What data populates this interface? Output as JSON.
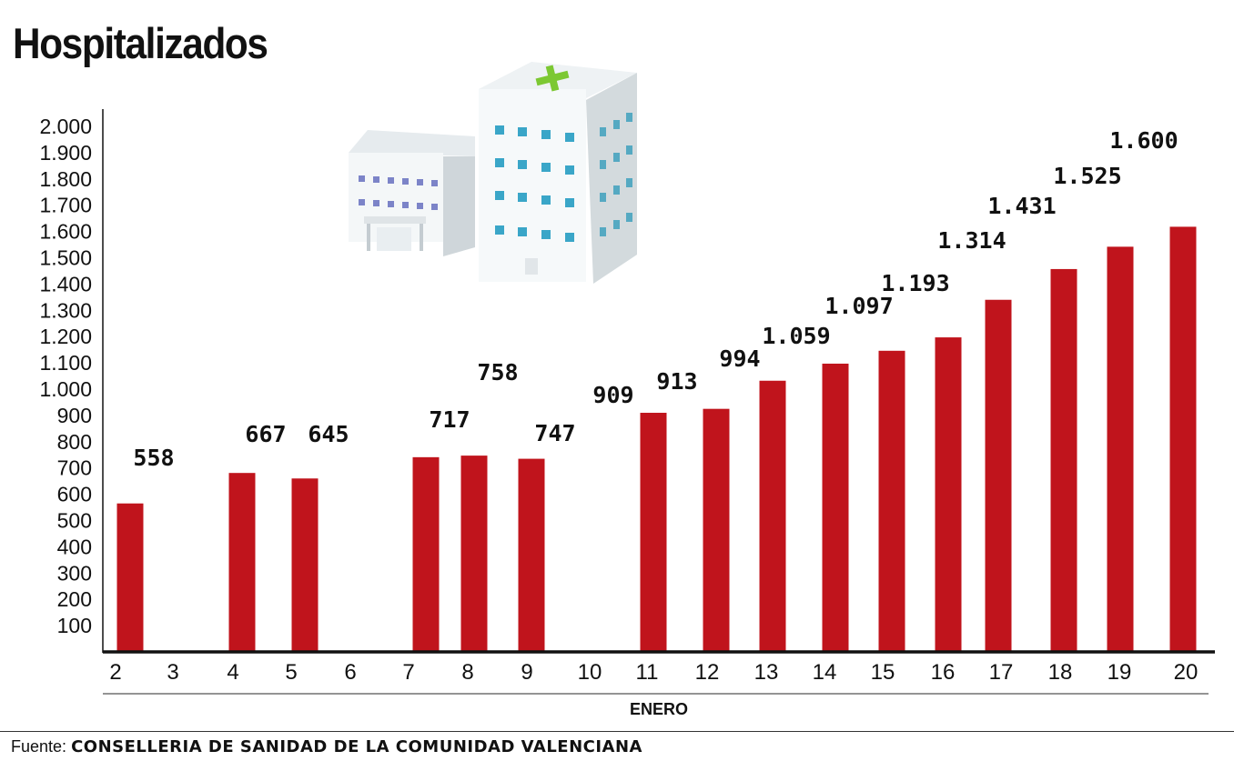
{
  "chart_data": {
    "type": "bar",
    "title": "Hospitalizados",
    "xlabel": "ENERO",
    "ylabel": "",
    "categories": [
      "2",
      "3",
      "4",
      "5",
      "6",
      "7",
      "8",
      "9",
      "10",
      "11",
      "12",
      "13",
      "14",
      "15",
      "16",
      "17",
      "18",
      "19",
      "20"
    ],
    "values": [
      558,
      null,
      667,
      645,
      null,
      717,
      758,
      747,
      909,
      913,
      994,
      1059,
      1097,
      1193,
      1314,
      1431,
      1525,
      1600,
      null
    ],
    "data_labels": [
      "558",
      "",
      "667",
      "645",
      "",
      "717",
      "758",
      "747",
      "909",
      "913",
      "994",
      "1.059",
      "1.097",
      "1.193",
      "1.314",
      "1.431",
      "1.525",
      "1.600",
      ""
    ],
    "bar_heights": [
      565,
      null,
      681,
      660,
      null,
      741,
      747,
      735,
      null,
      910,
      925,
      1032,
      1097,
      1146,
      1197,
      1340,
      1457,
      1542,
      1618
    ],
    "yticks": [
      100,
      200,
      300,
      400,
      500,
      600,
      700,
      800,
      900,
      1000,
      1100,
      1200,
      1300,
      1400,
      1500,
      1600,
      1700,
      1800,
      1900,
      2000
    ],
    "ytick_labels": [
      "100",
      "200",
      "300",
      "400",
      "500",
      "600",
      "700",
      "800",
      "900",
      "1.000",
      "1.100",
      "1.200",
      "1.300",
      "1.400",
      "1.500",
      "1.600",
      "1.700",
      "1.800",
      "1.900",
      "2.000"
    ],
    "ylim": [
      0,
      2000
    ],
    "grid": false,
    "legend": "none",
    "bar_color": "#c0141c",
    "illustration": "hospital-building-icon"
  },
  "source": {
    "prefix": "Fuente:",
    "name": "CONSELLERIA DE SANIDAD DE LA COMUNIDAD VALENCIANA"
  }
}
